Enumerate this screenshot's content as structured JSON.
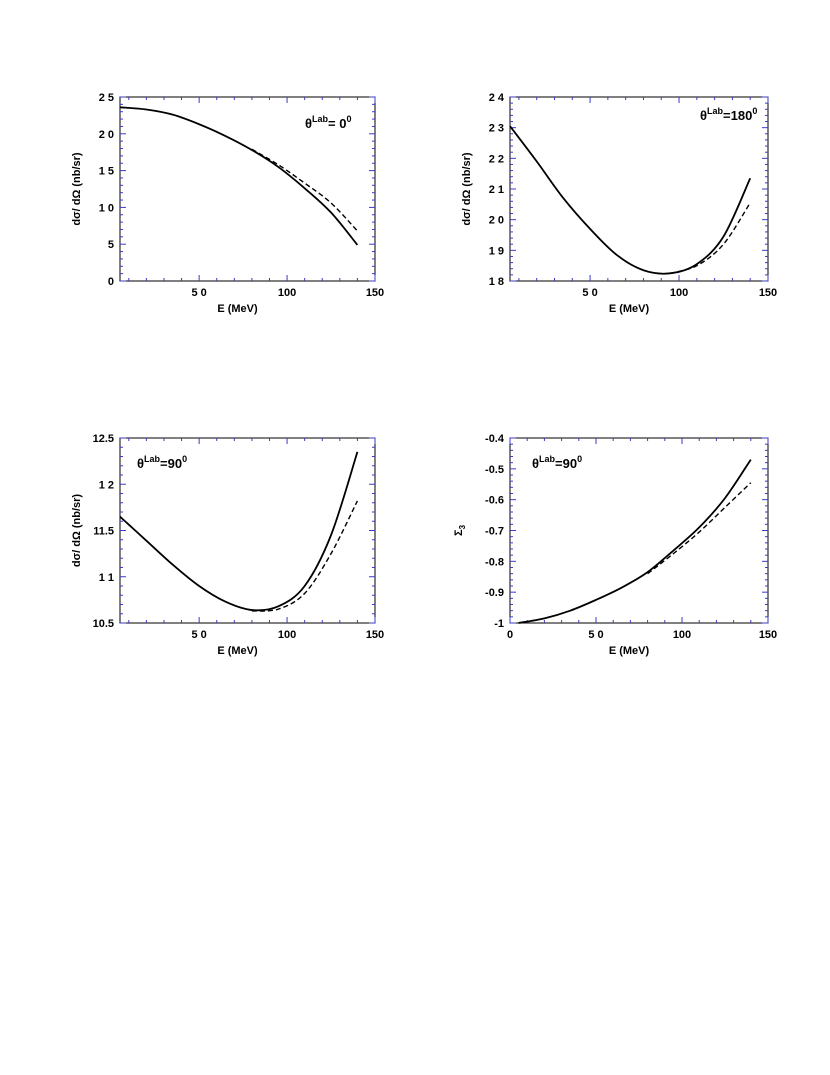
{
  "chart_data": [
    {
      "type": "line",
      "annotation": {
        "prefix": "θ",
        "sup": "Lab",
        "text": "= 0",
        "deg": "0"
      },
      "xlabel": "E  (MeV)",
      "ylabel": "dσ/ dΩ  (nb/sr)",
      "xlim": [
        5,
        150
      ],
      "ylim": [
        0,
        25
      ],
      "xticks": [
        {
          "v": 50,
          "label": "5 0"
        },
        {
          "v": 100,
          "label": "100"
        },
        {
          "v": 150,
          "label": "150"
        }
      ],
      "yticks": [
        {
          "v": 0,
          "label": "0"
        },
        {
          "v": 5,
          "label": "5"
        },
        {
          "v": 10,
          "label": "1 0"
        },
        {
          "v": 15,
          "label": "1 5"
        },
        {
          "v": 20,
          "label": "2 0"
        },
        {
          "v": 25,
          "label": "2 5"
        }
      ],
      "series": [
        {
          "style": "solid",
          "x": [
            5,
            20,
            35,
            50,
            65,
            80,
            95,
            110,
            125,
            140
          ],
          "y": [
            23.6,
            23.3,
            22.6,
            21.3,
            19.7,
            17.8,
            15.5,
            12.6,
            9.3,
            4.9
          ]
        },
        {
          "style": "dashed",
          "x": [
            80,
            95,
            110,
            125,
            140
          ],
          "y": [
            17.9,
            15.8,
            13.3,
            10.6,
            6.8
          ]
        }
      ]
    },
    {
      "type": "line",
      "annotation": {
        "prefix": "θ",
        "sup": "Lab",
        "text": "=180",
        "deg": "0"
      },
      "xlabel": "E  (MeV)",
      "ylabel": "dσ/ dΩ  (nb/sr)",
      "xlim": [
        5,
        150
      ],
      "ylim": [
        18,
        24
      ],
      "xticks": [
        {
          "v": 50,
          "label": "5 0"
        },
        {
          "v": 100,
          "label": "100"
        },
        {
          "v": 150,
          "label": "150"
        }
      ],
      "yticks": [
        {
          "v": 18,
          "label": "1 8"
        },
        {
          "v": 19,
          "label": "1 9"
        },
        {
          "v": 20,
          "label": "2 0"
        },
        {
          "v": 21,
          "label": "2 1"
        },
        {
          "v": 22,
          "label": "2 2"
        },
        {
          "v": 23,
          "label": "2 3"
        },
        {
          "v": 24,
          "label": "2 4"
        }
      ],
      "series": [
        {
          "style": "solid",
          "x": [
            5,
            20,
            35,
            50,
            65,
            80,
            95,
            110,
            125,
            140
          ],
          "y": [
            23.05,
            21.9,
            20.7,
            19.7,
            18.85,
            18.35,
            18.25,
            18.55,
            19.45,
            21.35
          ]
        },
        {
          "style": "dashed",
          "x": [
            95,
            110,
            125,
            140
          ],
          "y": [
            18.25,
            18.5,
            19.2,
            20.55
          ]
        }
      ]
    },
    {
      "type": "line",
      "annotation": {
        "prefix": "θ",
        "sup": "Lab",
        "text": "=90",
        "deg": "0"
      },
      "xlabel": "E  (MeV)",
      "ylabel": "dσ/ dΩ  (nb/sr)",
      "xlim": [
        5,
        150
      ],
      "ylim": [
        10.5,
        12.5
      ],
      "xticks": [
        {
          "v": 50,
          "label": "5 0"
        },
        {
          "v": 100,
          "label": "100"
        },
        {
          "v": 150,
          "label": "150"
        }
      ],
      "yticks": [
        {
          "v": 10.5,
          "label": "10.5"
        },
        {
          "v": 11,
          "label": "1 1"
        },
        {
          "v": 11.5,
          "label": "11.5"
        },
        {
          "v": 12,
          "label": "1 2"
        },
        {
          "v": 12.5,
          "label": "12.5"
        }
      ],
      "series": [
        {
          "style": "solid",
          "x": [
            5,
            20,
            35,
            50,
            65,
            80,
            95,
            110,
            125,
            140
          ],
          "y": [
            11.65,
            11.39,
            11.13,
            10.9,
            10.73,
            10.64,
            10.68,
            10.9,
            11.45,
            12.35
          ]
        },
        {
          "style": "dashed",
          "x": [
            80,
            95,
            110,
            125,
            140
          ],
          "y": [
            10.63,
            10.65,
            10.82,
            11.25,
            11.82
          ]
        }
      ]
    },
    {
      "type": "line",
      "annotation": {
        "prefix": "θ",
        "sup": "Lab",
        "text": "=90",
        "deg": "0"
      },
      "xlabel": "E  (MeV)",
      "ylabel": "Σ",
      "ylabel_sub": "3",
      "xlim": [
        0,
        150
      ],
      "ylim": [
        -1,
        -0.4
      ],
      "xticks": [
        {
          "v": 0,
          "label": "0"
        },
        {
          "v": 50,
          "label": "5 0"
        },
        {
          "v": 100,
          "label": "100"
        },
        {
          "v": 150,
          "label": "150"
        }
      ],
      "yticks": [
        {
          "v": -1,
          "label": "-1"
        },
        {
          "v": -0.9,
          "label": "-0.9"
        },
        {
          "v": -0.8,
          "label": "-0.8"
        },
        {
          "v": -0.7,
          "label": "-0.7"
        },
        {
          "v": -0.6,
          "label": "-0.6"
        },
        {
          "v": -0.5,
          "label": "-0.5"
        },
        {
          "v": -0.4,
          "label": "-0.4"
        }
      ],
      "series": [
        {
          "style": "solid",
          "x": [
            5,
            20,
            35,
            50,
            65,
            80,
            95,
            110,
            125,
            140
          ],
          "y": [
            -1.0,
            -0.985,
            -0.96,
            -0.925,
            -0.885,
            -0.835,
            -0.765,
            -0.69,
            -0.595,
            -0.47
          ]
        },
        {
          "style": "dashed",
          "x": [
            80,
            95,
            110,
            125,
            140
          ],
          "y": [
            -0.84,
            -0.775,
            -0.705,
            -0.625,
            -0.545
          ]
        }
      ]
    }
  ]
}
